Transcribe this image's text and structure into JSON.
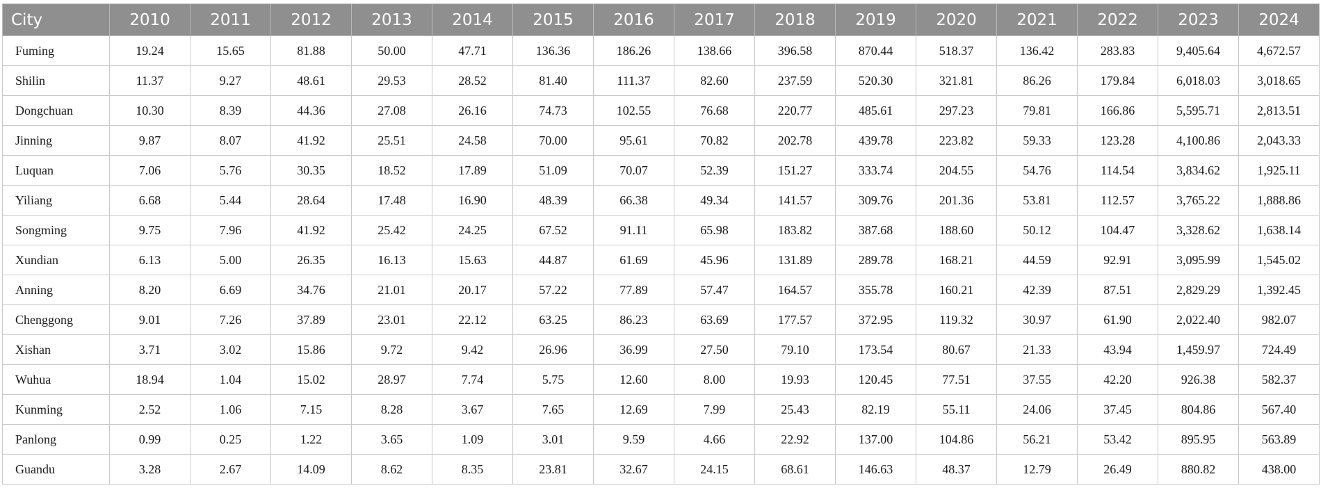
{
  "table": {
    "headers": [
      "City",
      "2010",
      "2011",
      "2012",
      "2013",
      "2014",
      "2015",
      "2016",
      "2017",
      "2018",
      "2019",
      "2020",
      "2021",
      "2022",
      "2023",
      "2024"
    ],
    "rows": [
      [
        "Fuming",
        "19.24",
        "15.65",
        "81.88",
        "50.00",
        "47.71",
        "136.36",
        "186.26",
        "138.66",
        "396.58",
        "870.44",
        "518.37",
        "136.42",
        "283.83",
        "9,405.64",
        "4,672.57"
      ],
      [
        "Shilin",
        "11.37",
        "9.27",
        "48.61",
        "29.53",
        "28.52",
        "81.40",
        "111.37",
        "82.60",
        "237.59",
        "520.30",
        "321.81",
        "86.26",
        "179.84",
        "6,018.03",
        "3,018.65"
      ],
      [
        "Dongchuan",
        "10.30",
        "8.39",
        "44.36",
        "27.08",
        "26.16",
        "74.73",
        "102.55",
        "76.68",
        "220.77",
        "485.61",
        "297.23",
        "79.81",
        "166.86",
        "5,595.71",
        "2,813.51"
      ],
      [
        "Jinning",
        "9.87",
        "8.07",
        "41.92",
        "25.51",
        "24.58",
        "70.00",
        "95.61",
        "70.82",
        "202.78",
        "439.78",
        "223.82",
        "59.33",
        "123.28",
        "4,100.86",
        "2,043.33"
      ],
      [
        "Luquan",
        "7.06",
        "5.76",
        "30.35",
        "18.52",
        "17.89",
        "51.09",
        "70.07",
        "52.39",
        "151.27",
        "333.74",
        "204.55",
        "54.76",
        "114.54",
        "3,834.62",
        "1,925.11"
      ],
      [
        "Yiliang",
        "6.68",
        "5.44",
        "28.64",
        "17.48",
        "16.90",
        "48.39",
        "66.38",
        "49.34",
        "141.57",
        "309.76",
        "201.36",
        "53.81",
        "112.57",
        "3,765.22",
        "1,888.86"
      ],
      [
        "Songming",
        "9.75",
        "7.96",
        "41.92",
        "25.42",
        "24.25",
        "67.52",
        "91.11",
        "65.98",
        "183.82",
        "387.68",
        "188.60",
        "50.12",
        "104.47",
        "3,328.62",
        "1,638.14"
      ],
      [
        "Xundian",
        "6.13",
        "5.00",
        "26.35",
        "16.13",
        "15.63",
        "44.87",
        "61.69",
        "45.96",
        "131.89",
        "289.78",
        "168.21",
        "44.59",
        "92.91",
        "3,095.99",
        "1,545.02"
      ],
      [
        "Anning",
        "8.20",
        "6.69",
        "34.76",
        "21.01",
        "20.17",
        "57.22",
        "77.89",
        "57.47",
        "164.57",
        "355.78",
        "160.21",
        "42.39",
        "87.51",
        "2,829.29",
        "1,392.45"
      ],
      [
        "Chenggong",
        "9.01",
        "7.26",
        "37.89",
        "23.01",
        "22.12",
        "63.25",
        "86.23",
        "63.69",
        "177.57",
        "372.95",
        "119.32",
        "30.97",
        "61.90",
        "2,022.40",
        "982.07"
      ],
      [
        "Xishan",
        "3.71",
        "3.02",
        "15.86",
        "9.72",
        "9.42",
        "26.96",
        "36.99",
        "27.50",
        "79.10",
        "173.54",
        "80.67",
        "21.33",
        "43.94",
        "1,459.97",
        "724.49"
      ],
      [
        "Wuhua",
        "18.94",
        "1.04",
        "15.02",
        "28.97",
        "7.74",
        "5.75",
        "12.60",
        "8.00",
        "19.93",
        "120.45",
        "77.51",
        "37.55",
        "42.20",
        "926.38",
        "582.37"
      ],
      [
        "Kunming",
        "2.52",
        "1.06",
        "7.15",
        "8.28",
        "3.67",
        "7.65",
        "12.69",
        "7.99",
        "25.43",
        "82.19",
        "55.11",
        "24.06",
        "37.45",
        "804.86",
        "567.40"
      ],
      [
        "Panlong",
        "0.99",
        "0.25",
        "1.22",
        "3.65",
        "1.09",
        "3.01",
        "9.59",
        "4.66",
        "22.92",
        "137.00",
        "104.86",
        "56.21",
        "53.42",
        "895.95",
        "563.89"
      ],
      [
        "Guandu",
        "3.28",
        "2.67",
        "14.09",
        "8.62",
        "8.35",
        "23.81",
        "32.67",
        "24.15",
        "68.61",
        "146.63",
        "48.37",
        "12.79",
        "26.49",
        "880.82",
        "438.00"
      ]
    ]
  },
  "colors": {
    "header_bg": "#8f8f8f",
    "header_text": "#ffffff",
    "border": "#c8c8c8"
  }
}
